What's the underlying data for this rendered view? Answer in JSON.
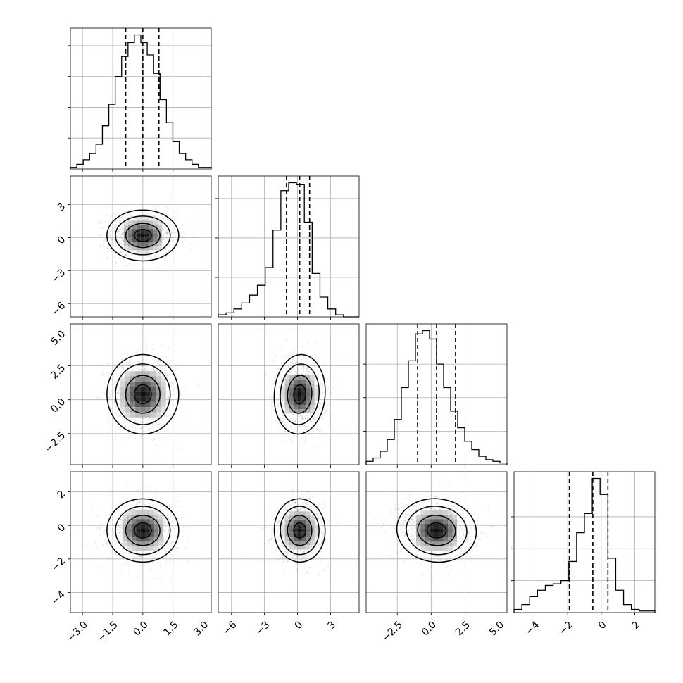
{
  "chart_data": {
    "type": "corner",
    "grid": true,
    "parameters": [
      {
        "range": [
          -3.6,
          3.4
        ],
        "ticks": [
          -3.0,
          -1.5,
          0.0,
          1.5,
          3.0
        ],
        "tick_labels": [
          "−3.0",
          "−1.5",
          "0.0",
          "1.5",
          "3.0"
        ],
        "quantiles": [
          -0.85,
          0.0,
          0.8
        ],
        "mean": 0.0,
        "sd": 0.85,
        "hist": [
          1,
          3,
          6,
          10,
          16,
          28,
          42,
          60,
          73,
          82,
          87,
          82,
          74,
          62,
          45,
          30,
          18,
          10,
          6,
          3,
          1,
          1
        ],
        "hist_ticks": [
          20,
          40,
          60,
          80
        ]
      },
      {
        "range": [
          -7.2,
          5.6
        ],
        "ticks": [
          -6,
          -3,
          0,
          3
        ],
        "tick_labels": [
          "−6",
          "−3",
          "0",
          "3"
        ],
        "quantiles": [
          -1.0,
          0.2,
          1.1
        ],
        "mean": 0.2,
        "sd": 1.1,
        "hist": [
          1,
          2,
          4,
          7,
          11,
          16,
          25,
          44,
          64,
          68,
          67,
          48,
          22,
          10,
          4,
          1,
          0,
          0
        ],
        "hist_ticks": [
          20,
          40,
          60
        ]
      },
      {
        "range": [
          -4.8,
          5.6
        ],
        "ticks": [
          -2.5,
          0.0,
          2.5,
          5.0
        ],
        "tick_labels": [
          "−2.5",
          "0.0",
          "2.5",
          "5.0"
        ],
        "quantiles": [
          -1.0,
          0.4,
          1.8
        ],
        "mean": 0.4,
        "sd": 1.4,
        "hist": [
          2,
          4,
          8,
          15,
          27,
          46,
          62,
          78,
          80,
          75,
          60,
          46,
          32,
          22,
          14,
          9,
          5,
          3,
          2,
          1
        ],
        "hist_ticks": [
          20,
          40,
          60
        ]
      },
      {
        "range": [
          -5.2,
          3.2
        ],
        "ticks": [
          -4,
          -2,
          0,
          2
        ],
        "tick_labels": [
          "−4",
          "−2",
          "0",
          "2"
        ],
        "quantiles": [
          -1.9,
          -0.5,
          0.4
        ],
        "mean": -0.3,
        "sd": 0.9,
        "hist": [
          2,
          5,
          10,
          14,
          17,
          18,
          20,
          32,
          50,
          62,
          84,
          74,
          34,
          14,
          5,
          2,
          1,
          1
        ],
        "hist_ticks": [
          20,
          40,
          60
        ]
      }
    ],
    "pairs": [
      {
        "row": 1,
        "col": 0,
        "rho": 0.0
      },
      {
        "row": 2,
        "col": 0,
        "rho": 0.0
      },
      {
        "row": 2,
        "col": 1,
        "rho": -0.1
      },
      {
        "row": 3,
        "col": 0,
        "rho": 0.0
      },
      {
        "row": 3,
        "col": 1,
        "rho": 0.05
      },
      {
        "row": 3,
        "col": 2,
        "rho": -0.15
      }
    ]
  }
}
